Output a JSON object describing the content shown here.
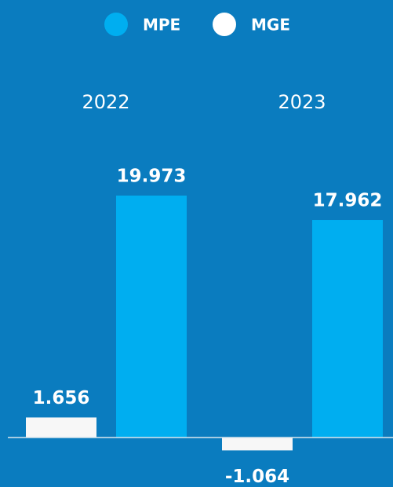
{
  "chart_data": {
    "type": "bar",
    "categories": [
      "2022",
      "2023"
    ],
    "series": [
      {
        "name": "MPE",
        "color": "#00aef0",
        "values": [
          19.973,
          17.962
        ]
      },
      {
        "name": "MGE",
        "color": "#f7f7f7",
        "values": [
          1.656,
          -1.064
        ]
      }
    ]
  }
}
